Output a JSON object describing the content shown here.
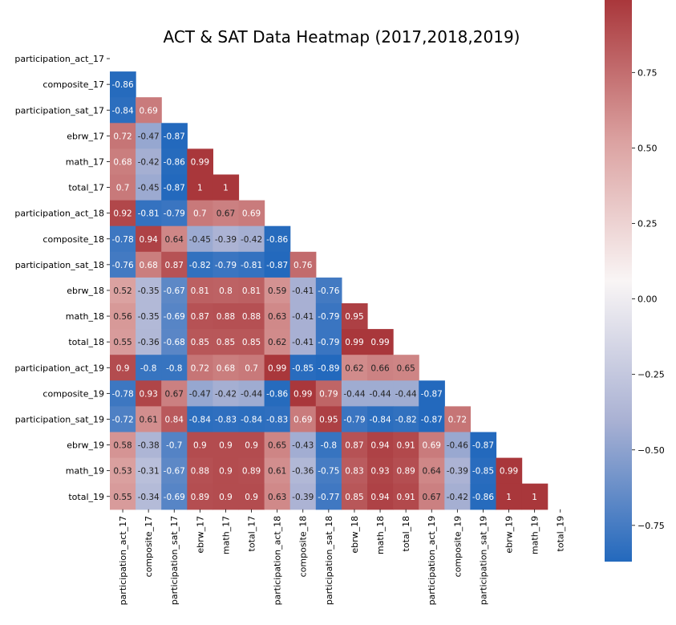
{
  "chart_data": {
    "type": "heatmap",
    "title": "ACT & SAT Data Heatmap (2017,2018,2019)",
    "variables": [
      "participation_act_17",
      "composite_17",
      "participation_sat_17",
      "ebrw_17",
      "math_17",
      "total_17",
      "participation_act_18",
      "composite_18",
      "participation_sat_18",
      "ebrw_18",
      "math_18",
      "total_18",
      "participation_act_19",
      "composite_19",
      "participation_sat_19",
      "ebrw_19",
      "math_19",
      "total_19"
    ],
    "mask": "upper-triangle-including-diagonal",
    "lower_triangle": [
      [],
      [
        -0.86
      ],
      [
        -0.84,
        0.69
      ],
      [
        0.72,
        -0.47,
        -0.87
      ],
      [
        0.68,
        -0.42,
        -0.86,
        0.99
      ],
      [
        0.7,
        -0.45,
        -0.87,
        1,
        1
      ],
      [
        0.92,
        -0.81,
        -0.79,
        0.7,
        0.67,
        0.69
      ],
      [
        -0.78,
        0.94,
        0.64,
        -0.45,
        -0.39,
        -0.42,
        -0.86
      ],
      [
        -0.76,
        0.68,
        0.87,
        -0.82,
        -0.79,
        -0.81,
        -0.87,
        0.76
      ],
      [
        0.52,
        -0.35,
        -0.67,
        0.81,
        0.8,
        0.81,
        0.59,
        -0.41,
        -0.76
      ],
      [
        0.56,
        -0.35,
        -0.69,
        0.87,
        0.88,
        0.88,
        0.63,
        -0.41,
        -0.79,
        0.95
      ],
      [
        0.55,
        -0.36,
        -0.68,
        0.85,
        0.85,
        0.85,
        0.62,
        -0.41,
        -0.79,
        0.99,
        0.99
      ],
      [
        0.9,
        -0.8,
        -0.8,
        0.72,
        0.68,
        0.7,
        0.99,
        -0.85,
        -0.89,
        0.62,
        0.66,
        0.65
      ],
      [
        -0.78,
        0.93,
        0.67,
        -0.47,
        -0.42,
        -0.44,
        -0.86,
        0.99,
        0.79,
        -0.44,
        -0.44,
        -0.44,
        -0.87
      ],
      [
        -0.72,
        0.61,
        0.84,
        -0.84,
        -0.83,
        -0.84,
        -0.83,
        0.69,
        0.95,
        -0.79,
        -0.84,
        -0.82,
        -0.87,
        0.72
      ],
      [
        0.58,
        -0.38,
        -0.7,
        0.9,
        0.9,
        0.9,
        0.65,
        -0.43,
        -0.8,
        0.87,
        0.94,
        0.91,
        0.69,
        -0.46,
        -0.87
      ],
      [
        0.53,
        -0.31,
        -0.67,
        0.88,
        0.9,
        0.89,
        0.61,
        -0.36,
        -0.75,
        0.83,
        0.93,
        0.89,
        0.64,
        -0.39,
        -0.85,
        0.99
      ],
      [
        0.55,
        -0.34,
        -0.69,
        0.89,
        0.9,
        0.9,
        0.63,
        -0.39,
        -0.77,
        0.85,
        0.94,
        0.91,
        0.67,
        -0.42,
        -0.86,
        1,
        1
      ]
    ],
    "colormap": "vlag",
    "colormap_stops": [
      "#2369bd",
      "#a9b1d3",
      "#f9f5f5",
      "#dba1a0",
      "#a9373b"
    ],
    "color_range": [
      -0.87,
      0.99
    ],
    "colorbar_ticks": [
      -0.75,
      -0.5,
      -0.25,
      0.0,
      0.25,
      0.5,
      0.75
    ],
    "colorbar_tick_labels": [
      "−0.75",
      "−0.50",
      "−0.25",
      "0.00",
      "0.25",
      "0.50",
      "0.75"
    ]
  }
}
